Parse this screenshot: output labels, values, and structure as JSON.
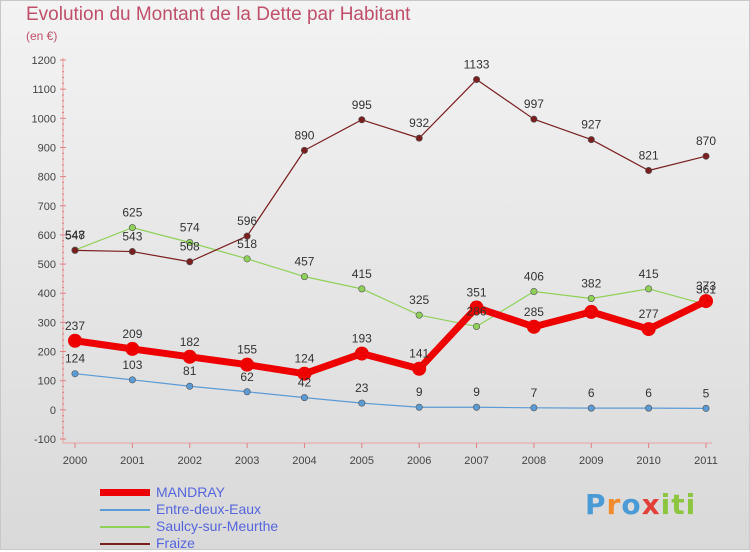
{
  "title": "Evolution du Montant de la Dette par Habitant",
  "unit": "(en €)",
  "brand": "Proxiti",
  "chart_data": {
    "type": "line",
    "title": "Evolution du Montant de la Dette par Habitant",
    "subtitle": "(en €)",
    "xlabel": "",
    "ylabel": "",
    "categories": [
      "2000",
      "2001",
      "2002",
      "2003",
      "2004",
      "2005",
      "2006",
      "2007",
      "2008",
      "2009",
      "2010",
      "2011"
    ],
    "ylim": [
      -100,
      1200
    ],
    "yticks": [
      -100,
      0,
      100,
      200,
      300,
      400,
      500,
      600,
      700,
      800,
      900,
      1000,
      1100,
      1200
    ],
    "grid": false,
    "legend_position": "bottom-left",
    "series": [
      {
        "name": "MANDRAY",
        "color": "#ee0000",
        "thick": true,
        "values": [
          237,
          209,
          182,
          155,
          124,
          193,
          141,
          351,
          285,
          336,
          277,
          373
        ],
        "labels": [
          "237",
          "209",
          "182",
          "155",
          "124",
          "193",
          "141",
          "351",
          "285",
          "",
          "277",
          "373"
        ]
      },
      {
        "name": "Entre-deux-Eaux",
        "color": "#5b9bd5",
        "thick": false,
        "values": [
          124,
          103,
          81,
          62,
          42,
          23,
          9,
          9,
          7,
          6,
          6,
          5
        ],
        "labels": [
          "124",
          "103",
          "81",
          "62",
          "42",
          "23",
          "9",
          "9",
          "7",
          "6",
          "6",
          "5"
        ]
      },
      {
        "name": "Saulcy-sur-Meurthe",
        "color": "#8fd158",
        "thick": false,
        "values": [
          548,
          625,
          574,
          518,
          457,
          415,
          325,
          286,
          406,
          382,
          415,
          361
        ],
        "labels": [
          "548",
          "625",
          "574",
          "518",
          "457",
          "415",
          "325",
          "286",
          "406",
          "382",
          "415",
          "361"
        ]
      },
      {
        "name": "Fraize",
        "color": "#7a1f1f",
        "thick": false,
        "values": [
          547,
          543,
          508,
          596,
          890,
          995,
          932,
          1133,
          997,
          927,
          821,
          870
        ],
        "labels": [
          "547",
          "543",
          "508",
          "596",
          "890",
          "995",
          "932",
          "1133",
          "997",
          "927",
          "821",
          "870"
        ]
      }
    ]
  }
}
